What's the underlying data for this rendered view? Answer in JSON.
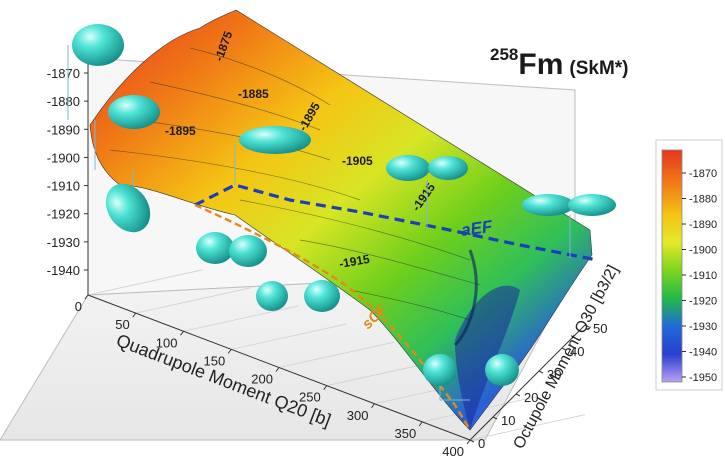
{
  "header": {
    "mass_number": "258",
    "element": "Fm",
    "model": "(SkM*)"
  },
  "chart_data": {
    "type": "surface",
    "title": "258Fm (SkM*)",
    "zlabel": "",
    "xlabel": "Quadrupole Moment Q20 [b]",
    "ylabel": "Octupole Moment Q30 [b3/2]",
    "x_ticks": [
      "0",
      "50",
      "100",
      "150",
      "200",
      "250",
      "300",
      "350",
      "400"
    ],
    "y_ticks": [
      "0",
      "10",
      "20",
      "30",
      "40",
      "50"
    ],
    "z_ticks": [
      "-1870",
      "-1880",
      "-1890",
      "-1900",
      "-1910",
      "-1920",
      "-1930",
      "-1940"
    ],
    "zlim": [
      -1955,
      -1865
    ],
    "xlim": [
      0,
      400
    ],
    "ylim": [
      0,
      50
    ],
    "colorbar": {
      "ticks": [
        "-1870",
        "-1880",
        "-1890",
        "-1900",
        "-1910",
        "-1920",
        "-1930",
        "-1940",
        "-1950"
      ],
      "colors": [
        "#e8361f",
        "#f07a16",
        "#f5b714",
        "#f0e62a",
        "#b8df1e",
        "#57c91a",
        "#1f9e6a",
        "#1f3fc8",
        "#b08af0"
      ]
    },
    "contour_labels": [
      "-1875",
      "-1885",
      "-1895",
      "-1895",
      "-1905",
      "-1915",
      "-1915"
    ],
    "paths": [
      {
        "name": "aEF",
        "color": "#1a3fb8"
      },
      {
        "name": "sCF",
        "color": "#e08a1a"
      }
    ],
    "surface_profile_front": [
      {
        "q20": 0,
        "energy": -1885
      },
      {
        "q20": 50,
        "energy": -1900
      },
      {
        "q20": 100,
        "energy": -1902
      },
      {
        "q20": 150,
        "energy": -1912
      },
      {
        "q20": 200,
        "energy": -1918
      },
      {
        "q20": 250,
        "energy": -1925
      },
      {
        "q20": 300,
        "energy": -1935
      },
      {
        "q20": 350,
        "energy": -1945
      },
      {
        "q20": 400,
        "energy": -1955
      }
    ]
  }
}
